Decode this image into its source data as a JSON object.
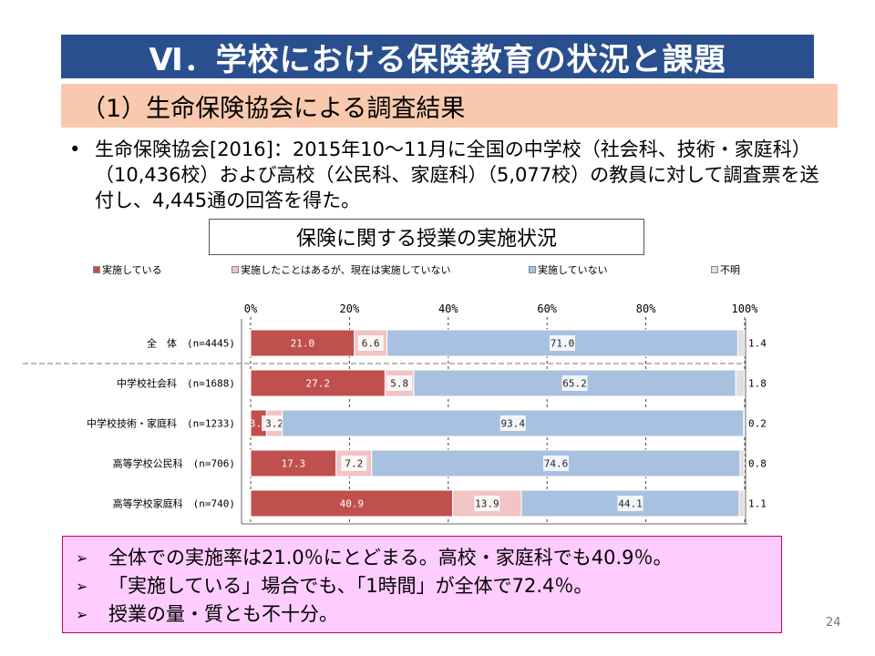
{
  "slide": {
    "title": "Ⅵ．学校における保険教育の状況と課題",
    "subtitle": "（1）生命保険協会による調査結果",
    "bullet": "生命保険協会[2016]：2015年10～11月に全国の中学校（社会科、技術・家庭科）（10,436校）および高校（公民科、家庭科）（5,077校）の教員に対して調査票を送付し、4,445通の回答を得た。",
    "bullet_marker": "•",
    "chart_title": "保険に関する授業の実施状況",
    "summary": [
      "全体での実施率は21.0％にとどまる。高校・家庭科でも40.9％。",
      "「実施している」場合でも、「1時間」が全体で72.4％。",
      "授業の量・質とも不十分。"
    ],
    "summary_marker": "➢",
    "page_number": "24"
  },
  "colors": {
    "title_bg": "#2a4f8f",
    "subtitle_bg": "#f8c9ad",
    "summary_bg": "#ffccff",
    "summary_border": "#c0006a"
  },
  "chart_data": {
    "type": "bar",
    "orientation": "horizontal",
    "stacked": true,
    "title": "保険に関する授業の実施状況",
    "xlim": [
      0,
      100
    ],
    "xticks": [
      "0%",
      "20%",
      "40%",
      "60%",
      "80%",
      "100%"
    ],
    "legend_position": "top",
    "categories": [
      "全　体　(n=4445)",
      "中学校社会科　(n=1688)",
      "中学校技術・家庭科　(n=1233)",
      "高等学校公民科　(n=706)",
      "高等学校家庭科　(n=740)"
    ],
    "series": [
      {
        "name": "実施している",
        "color": "#c0504d",
        "values": [
          21.0,
          27.2,
          3.2,
          17.3,
          40.9
        ]
      },
      {
        "name": "実施したことはあるが、現在は実施していない",
        "color": "#f2c4c4",
        "values": [
          6.6,
          5.8,
          3.2,
          7.2,
          13.9
        ]
      },
      {
        "name": "実施していない",
        "color": "#a9c1e0",
        "values": [
          71.0,
          65.2,
          93.4,
          74.6,
          44.1
        ]
      },
      {
        "name": "不明",
        "color": "#e0e0e0",
        "values": [
          1.4,
          1.8,
          0.2,
          0.8,
          1.1
        ]
      }
    ]
  }
}
